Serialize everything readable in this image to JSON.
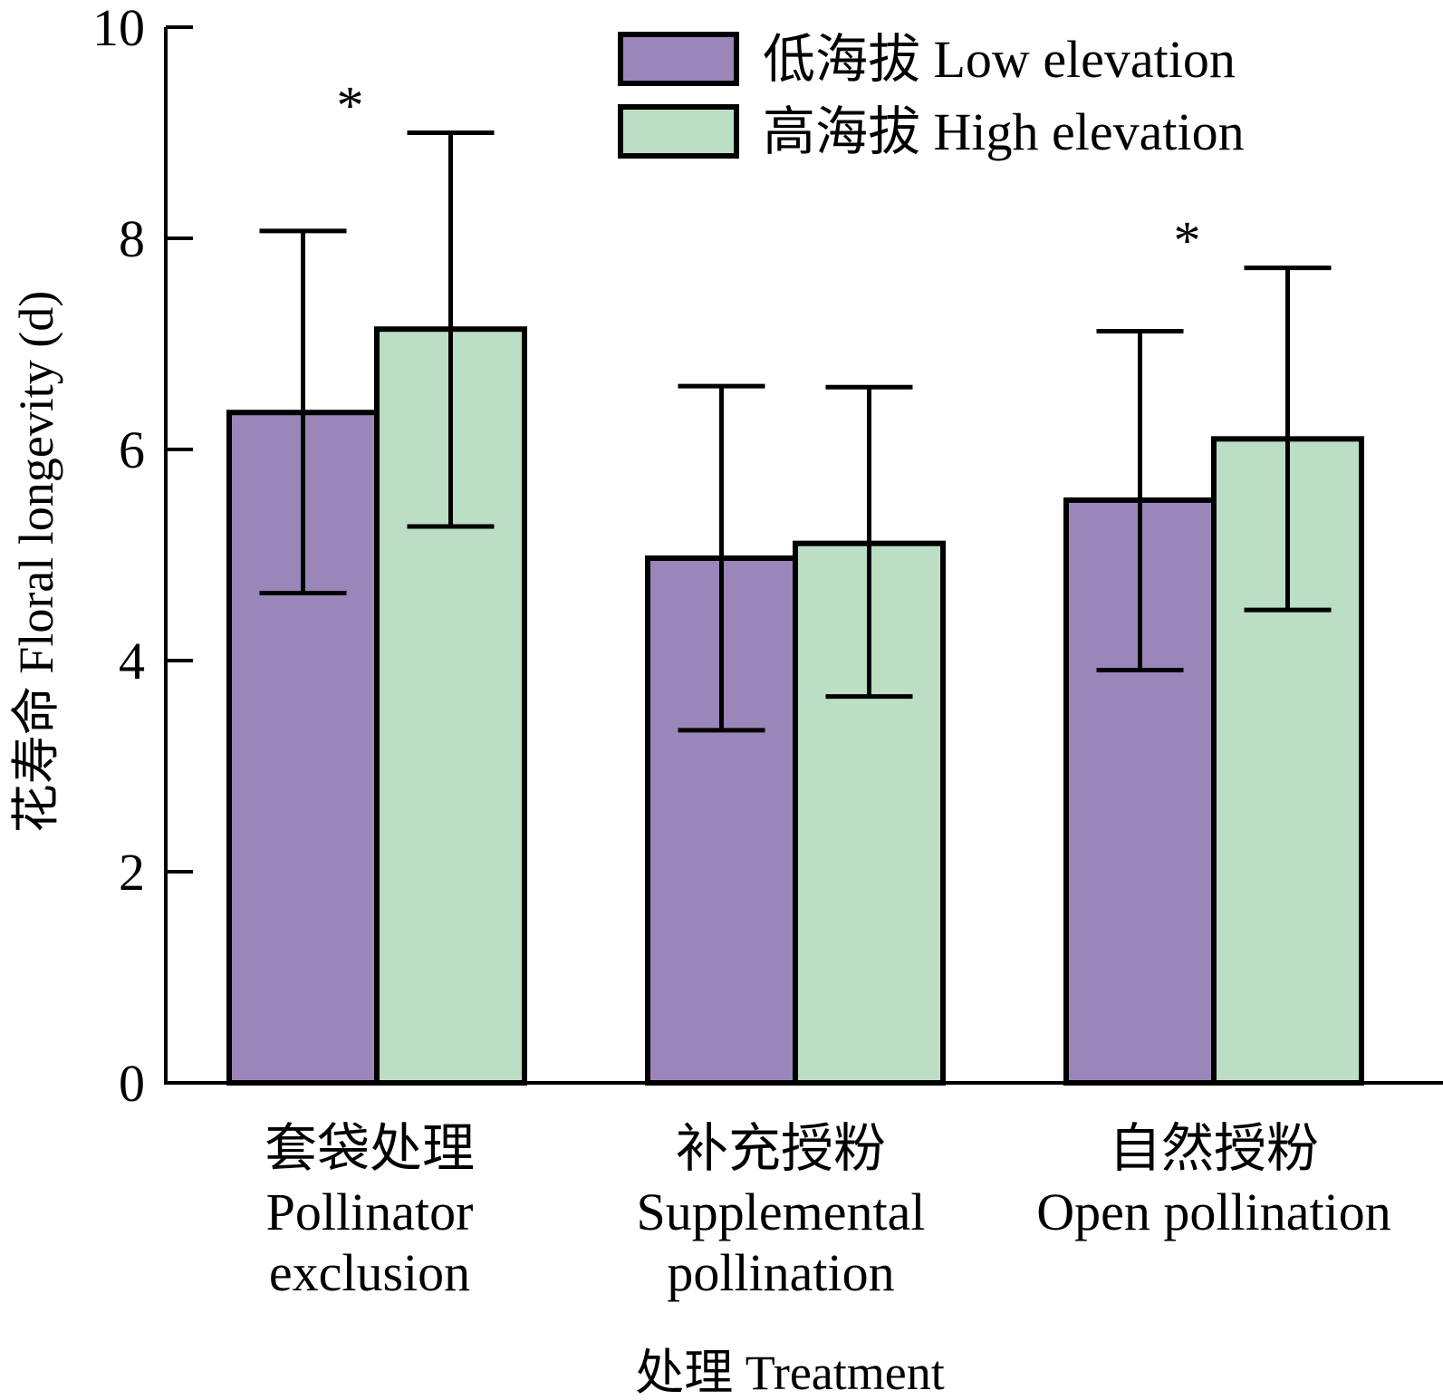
{
  "chart_data": {
    "type": "bar",
    "ylabel": "花寿命 Floral longevity (d)",
    "xlabel": "处理 Treatment",
    "ylim": [
      0,
      10
    ],
    "yticks": [
      "0",
      "2",
      "4",
      "6",
      "8",
      "10"
    ],
    "categories": [
      {
        "zh": "套袋处理",
        "en": [
          "Pollinator",
          "exclusion"
        ]
      },
      {
        "zh": "补充授粉",
        "en": [
          "Supplemental",
          "pollination"
        ]
      },
      {
        "zh": "自然授粉",
        "en": [
          "Open pollination"
        ]
      }
    ],
    "series": [
      {
        "name": "低海拔 Low elevation",
        "color": "#9b86b9",
        "values": [
          6.35,
          4.97,
          5.52
        ],
        "error_low": [
          4.64,
          3.34,
          3.91
        ],
        "error_high": [
          8.07,
          6.6,
          7.12
        ]
      },
      {
        "name": "高海拔 High elevation",
        "color": "#bbdec5",
        "values": [
          7.14,
          5.11,
          6.1
        ],
        "error_low": [
          5.27,
          3.66,
          4.48
        ],
        "error_high": [
          9.0,
          6.59,
          7.72
        ]
      }
    ],
    "annotations": [
      {
        "category": 0,
        "text": "*"
      },
      {
        "category": 2,
        "text": "*"
      }
    ],
    "legend_position": "top-right",
    "grid": false
  }
}
